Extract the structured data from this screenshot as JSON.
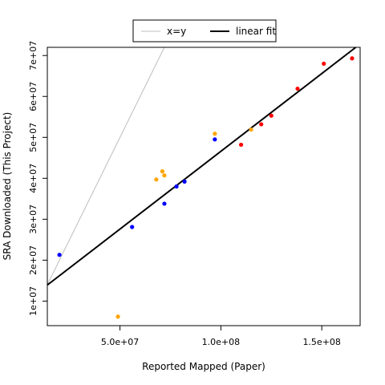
{
  "chart_data": {
    "type": "scatter",
    "title": "",
    "xlabel": "Reported Mapped (Paper)",
    "ylabel": "SRA Downloaded (This Project)",
    "xlim": [
      14000000,
      169000000
    ],
    "ylim": [
      4000000,
      72000000
    ],
    "x_ticks": [
      {
        "value": 50000000,
        "label": "5.0e+07"
      },
      {
        "value": 100000000,
        "label": "1.0e+08"
      },
      {
        "value": 150000000,
        "label": "1.5e+08"
      }
    ],
    "y_ticks": [
      {
        "value": 10000000,
        "label": "1e+07"
      },
      {
        "value": 20000000,
        "label": "2e+07"
      },
      {
        "value": 30000000,
        "label": "3e+07"
      },
      {
        "value": 40000000,
        "label": "4e+07"
      },
      {
        "value": 50000000,
        "label": "5e+07"
      },
      {
        "value": 60000000,
        "label": "6e+07"
      },
      {
        "value": 70000000,
        "label": "7e+07"
      }
    ],
    "grid": false,
    "legend": {
      "placement": "top-center",
      "entries": [
        {
          "label": "x=y",
          "color": "#bebebe",
          "line_width": 1
        },
        {
          "label": "linear fit",
          "color": "#000000",
          "line_width": 2
        }
      ]
    },
    "reference_lines": [
      {
        "name": "x=y",
        "color": "#bebebe",
        "slope": 1,
        "intercept": 0
      },
      {
        "name": "linear fit",
        "color": "#000000",
        "slope": 0.38,
        "intercept": 8600000
      }
    ],
    "series": [
      {
        "color": "#0000ff",
        "points": [
          {
            "x": 20000000,
            "y": 21300000
          },
          {
            "x": 56000000,
            "y": 28100000
          },
          {
            "x": 72000000,
            "y": 33800000
          },
          {
            "x": 78000000,
            "y": 38000000
          },
          {
            "x": 82000000,
            "y": 39200000
          },
          {
            "x": 97000000,
            "y": 49500000
          }
        ]
      },
      {
        "color": "#ffa500",
        "points": [
          {
            "x": 49000000,
            "y": 6200000
          },
          {
            "x": 68000000,
            "y": 39700000
          },
          {
            "x": 71000000,
            "y": 41700000
          },
          {
            "x": 72000000,
            "y": 40700000
          },
          {
            "x": 97000000,
            "y": 50900000
          },
          {
            "x": 115000000,
            "y": 51900000
          }
        ]
      },
      {
        "color": "#ff0000",
        "points": [
          {
            "x": 110000000,
            "y": 48200000
          },
          {
            "x": 120000000,
            "y": 53200000
          },
          {
            "x": 125000000,
            "y": 55300000
          },
          {
            "x": 138000000,
            "y": 61900000
          },
          {
            "x": 151000000,
            "y": 68000000
          },
          {
            "x": 165000000,
            "y": 69300000
          }
        ]
      }
    ]
  }
}
